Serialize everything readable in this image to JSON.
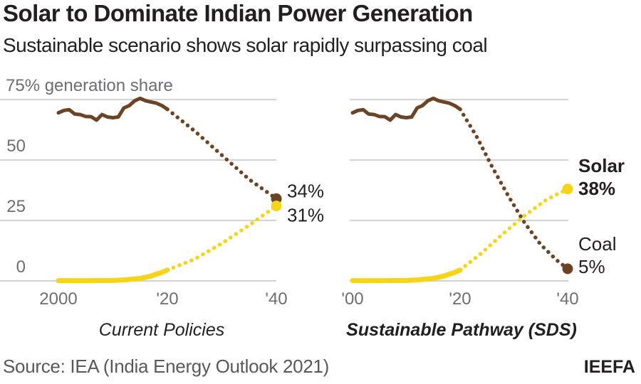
{
  "title": "Solar to Dominate Indian Power Generation",
  "subtitle": "Sustainable scenario shows solar rapidly surpassing coal",
  "source": "Source: IEA (India Energy Outlook 2021)",
  "brand": "IEEFA",
  "colors": {
    "coal": "#6b4423",
    "solar": "#f7d417",
    "grid": "#d1d3d4"
  },
  "chart_data": [
    {
      "type": "line",
      "title": "Current Policies",
      "ylabel": "75% generation share",
      "ylim": [
        0,
        75
      ],
      "yticks": [
        0,
        25,
        50,
        75
      ],
      "ytick_labels": [
        "0",
        "25",
        "50",
        "75% generation share"
      ],
      "xlim": [
        2000,
        2040
      ],
      "xticks": [
        2000,
        2020,
        2040
      ],
      "xtick_labels": [
        "2000",
        "'20",
        "'40"
      ],
      "grid": true,
      "series": [
        {
          "name": "Coal",
          "historical": {
            "x": [
              2000,
              2001,
              2002,
              2003,
              2004,
              2005,
              2006,
              2007,
              2008,
              2009,
              2010,
              2011,
              2012,
              2013,
              2014,
              2015,
              2016,
              2017,
              2018,
              2019,
              2020
            ],
            "y": [
              69.5,
              70.5,
              70.8,
              69.0,
              68.8,
              68.0,
              67.9,
              66.5,
              68.8,
              67.8,
              67.5,
              67.8,
              71.5,
              72.5,
              74.5,
              75.5,
              74.5,
              74.0,
              73.5,
              72.5,
              71.0
            ]
          },
          "projection": {
            "x": [
              2020,
              2025,
              2030,
              2035,
              2040
            ],
            "y": [
              71.0,
              62.0,
              52.0,
              42.0,
              34.0
            ]
          },
          "end_label": "34%"
        },
        {
          "name": "Solar",
          "historical": {
            "x": [
              2000,
              2005,
              2010,
              2012,
              2014,
              2015,
              2016,
              2017,
              2018,
              2019,
              2020
            ],
            "y": [
              0.1,
              0.1,
              0.2,
              0.4,
              0.8,
              1.0,
              1.5,
              2.0,
              2.8,
              3.5,
              4.5
            ]
          },
          "projection": {
            "x": [
              2020,
              2025,
              2030,
              2035,
              2040
            ],
            "y": [
              4.5,
              9.0,
              15.5,
              23.0,
              31.0
            ]
          },
          "end_label": "31%"
        }
      ]
    },
    {
      "type": "line",
      "title": "Sustainable Pathway (SDS)",
      "ylim": [
        0,
        75
      ],
      "yticks": [
        0,
        25,
        50,
        75
      ],
      "xlim": [
        2000,
        2040
      ],
      "xticks": [
        2000,
        2020,
        2040
      ],
      "xtick_labels": [
        "'00",
        "'20",
        "'40"
      ],
      "grid": true,
      "series": [
        {
          "name": "Coal",
          "historical": {
            "x": [
              2000,
              2001,
              2002,
              2003,
              2004,
              2005,
              2006,
              2007,
              2008,
              2009,
              2010,
              2011,
              2012,
              2013,
              2014,
              2015,
              2016,
              2017,
              2018,
              2019,
              2020
            ],
            "y": [
              69.5,
              70.5,
              70.8,
              69.0,
              68.8,
              68.0,
              67.9,
              66.5,
              68.8,
              67.8,
              67.5,
              67.8,
              71.5,
              72.5,
              74.5,
              75.5,
              74.5,
              74.0,
              73.5,
              72.5,
              71.0
            ]
          },
          "projection": {
            "x": [
              2020,
              2023,
              2026,
              2029,
              2032,
              2035,
              2038,
              2040
            ],
            "y": [
              71.0,
              60.0,
              47.0,
              35.0,
              24.0,
              15.0,
              8.5,
              5.0
            ]
          },
          "end_label_name": "Coal",
          "end_label": "5%"
        },
        {
          "name": "Solar",
          "historical": {
            "x": [
              2000,
              2005,
              2010,
              2012,
              2014,
              2015,
              2016,
              2017,
              2018,
              2019,
              2020
            ],
            "y": [
              0.1,
              0.1,
              0.2,
              0.4,
              0.8,
              1.0,
              1.5,
              2.0,
              2.8,
              3.5,
              4.5
            ]
          },
          "projection": {
            "x": [
              2020,
              2024,
              2028,
              2032,
              2036,
              2040
            ],
            "y": [
              4.5,
              11.5,
              19.5,
              27.0,
              33.5,
              38.0
            ]
          },
          "end_label_name": "Solar",
          "end_label": "38%"
        }
      ]
    }
  ]
}
